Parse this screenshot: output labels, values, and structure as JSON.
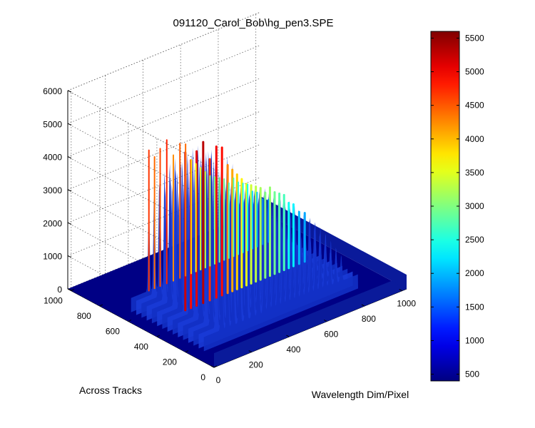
{
  "chart_data": {
    "type": "surface",
    "title": "091120_Carol_Bob\\hg_pen3.SPE",
    "xlabel": "Wavelength Dim/Pixel",
    "ylabel": "Across Tracks",
    "zlabel": "",
    "xlim": [
      0,
      1024
    ],
    "ylim": [
      0,
      1024
    ],
    "zlim": [
      0,
      6000
    ],
    "x_ticks": [
      0,
      200,
      400,
      600,
      800,
      1000
    ],
    "y_ticks": [
      0,
      200,
      400,
      600,
      800,
      1000
    ],
    "z_ticks": [
      0,
      1000,
      2000,
      3000,
      4000,
      5000,
      6000
    ],
    "grid": true,
    "colormap": "jet",
    "baseline": 430,
    "colorbar": {
      "ticks": [
        500,
        1000,
        1500,
        2000,
        2500,
        3000,
        3500,
        4000,
        4500,
        5000,
        5500
      ],
      "range": [
        400,
        5600
      ]
    },
    "signal_tracks": [
      150,
      660
    ],
    "peaks": [
      {
        "x": 155,
        "z": 5200
      },
      {
        "x": 185,
        "z": 4900
      },
      {
        "x": 215,
        "z": 5100
      },
      {
        "x": 250,
        "z": 5300
      },
      {
        "x": 285,
        "z": 4700
      },
      {
        "x": 320,
        "z": 5000
      },
      {
        "x": 350,
        "z": 4900
      },
      {
        "x": 380,
        "z": 4300
      },
      {
        "x": 405,
        "z": 4100
      },
      {
        "x": 430,
        "z": 3900
      },
      {
        "x": 455,
        "z": 3700
      },
      {
        "x": 480,
        "z": 3500
      },
      {
        "x": 505,
        "z": 3400
      },
      {
        "x": 530,
        "z": 3300
      },
      {
        "x": 555,
        "z": 3200
      },
      {
        "x": 580,
        "z": 3000
      },
      {
        "x": 605,
        "z": 3100
      },
      {
        "x": 630,
        "z": 2900
      },
      {
        "x": 655,
        "z": 2800
      },
      {
        "x": 680,
        "z": 2700
      },
      {
        "x": 705,
        "z": 2400
      },
      {
        "x": 730,
        "z": 2300
      },
      {
        "x": 760,
        "z": 2000
      },
      {
        "x": 790,
        "z": 1900
      }
    ]
  }
}
